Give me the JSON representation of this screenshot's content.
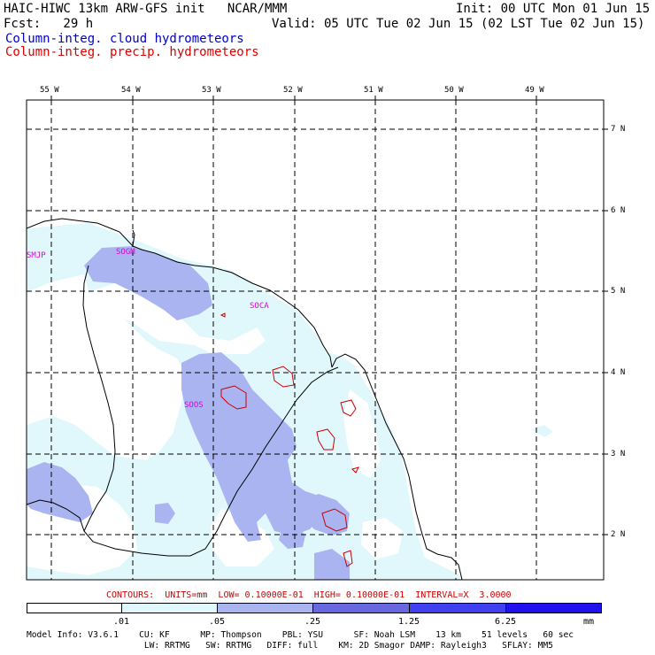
{
  "header": {
    "line1_left": "HAIC-HIWC 13km ARW-GFS init   NCAR/MMM",
    "line1_right": "Init: 00 UTC Mon 01 Jun 15",
    "line2_left": "Fcst:   29 h",
    "line2_right": "Valid: 05 UTC Tue 02 Jun 15 (02 LST Tue 02 Jun 15)",
    "field1": "Column-integ. cloud hydrometeors",
    "field2": "Column-integ. precip. hydrometeors"
  },
  "colors": {
    "field1": "#0000cc",
    "field2": "#dd0000",
    "contour": "#cc0000",
    "station_label": "#dd00dd",
    "shade_1": "#e0f8fc",
    "shade_2": "#aab4f0",
    "shade_3": "#6868e0",
    "shade_4": "#4040f0",
    "shade_5": "#2010ee"
  },
  "map": {
    "lon_labels": [
      "55 W",
      "54 W",
      "53 W",
      "52 W",
      "51 W",
      "50 W",
      "49 W"
    ],
    "lat_labels": [
      "7 N",
      "6 N",
      "5 N",
      "4 N",
      "3 N",
      "2 N"
    ],
    "stations": [
      "SMJP",
      "SOGM",
      "SOCA",
      "SOOS"
    ]
  },
  "contours_info": "CONTOURS:  UNITS=mm  LOW= 0.10000E-01  HIGH= 0.10000E-01  INTERVAL=X  3.0000",
  "legend": {
    "thresholds": [
      ".01",
      ".05",
      ".25",
      "1.25",
      "6.25"
    ],
    "unit": "mm"
  },
  "model_info": {
    "line1": "Model Info: V3.6.1    CU: KF      MP: Thompson    PBL: YSU      SF: Noah LSM    13 km    51 levels   60 sec",
    "line2": "                       LW: RRTMG   SW: RRTMG   DIFF: full    KM: 2D Smagor DAMP: Rayleigh3   SFLAY: MM5"
  }
}
